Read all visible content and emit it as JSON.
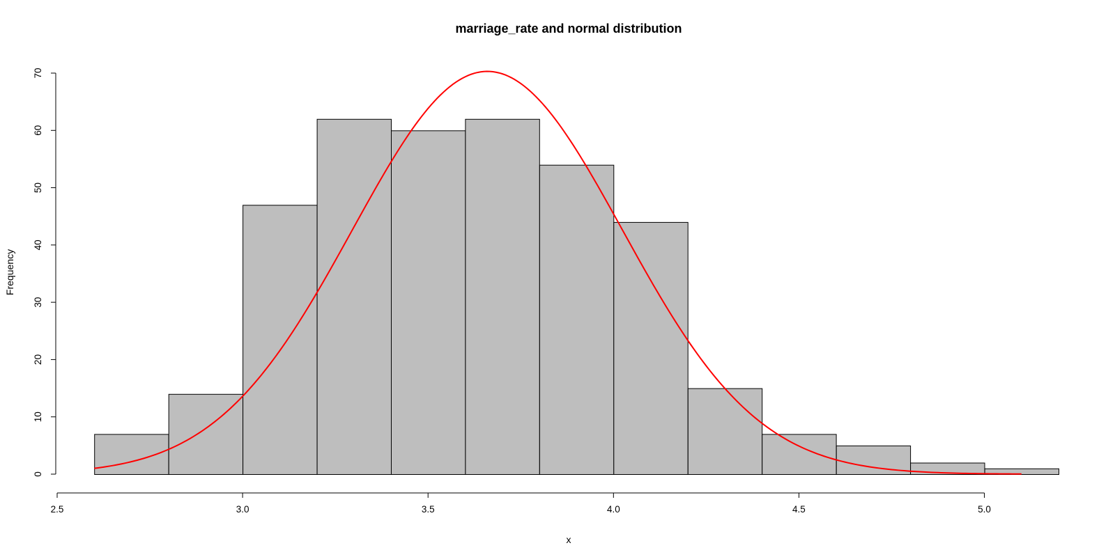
{
  "chart_data": {
    "type": "bar",
    "title": "marriage_rate and normal distribution",
    "xlabel": "x",
    "ylabel": "Frequency",
    "bin_edges": [
      2.6,
      2.8,
      3.0,
      3.2,
      3.4,
      3.6,
      3.8,
      4.0,
      4.2,
      4.4,
      4.6,
      4.8,
      5.0,
      5.2
    ],
    "values": [
      7,
      14,
      47,
      62,
      60,
      62,
      54,
      44,
      15,
      7,
      5,
      2,
      1
    ],
    "xlim": [
      2.5,
      5.2
    ],
    "ylim": [
      0,
      70
    ],
    "x_ticks": [
      "2.5",
      "3.0",
      "3.5",
      "4.0",
      "4.5",
      "5.0"
    ],
    "y_ticks": [
      "0",
      "10",
      "20",
      "30",
      "40",
      "50",
      "60",
      "70"
    ],
    "overlay_curve": {
      "type": "normal",
      "color": "#ff0000",
      "mean": 3.66,
      "sd": 0.364,
      "peak_frequency": 70.3,
      "x_range": [
        2.6,
        5.1
      ]
    },
    "bar_color": "#bebebe",
    "grid": false
  }
}
